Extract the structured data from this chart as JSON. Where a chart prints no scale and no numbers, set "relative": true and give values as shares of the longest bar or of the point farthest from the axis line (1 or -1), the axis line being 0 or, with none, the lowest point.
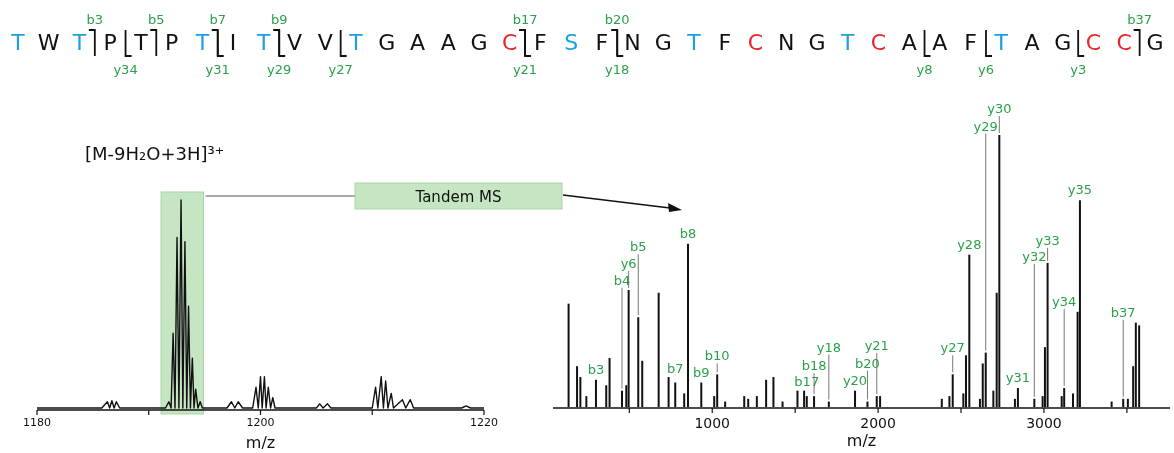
{
  "chart_data": [
    {
      "type": "other",
      "categories": [
        "T",
        "W",
        "T",
        "P",
        "T",
        "P",
        "T",
        "I",
        "T",
        "V",
        "V",
        "T",
        "G",
        "A",
        "A",
        "G",
        "C",
        "F",
        "S",
        "F",
        "N",
        "G",
        "T",
        "F",
        "C",
        "N",
        "G",
        "T",
        "C",
        "A",
        "A",
        "F",
        "T",
        "A",
        "G",
        "C",
        "C",
        "G"
      ],
      "colors": [
        "#1ba1e2",
        "#111111",
        "#1ba1e2",
        "#111111",
        "#111111",
        "#111111",
        "#1ba1e2",
        "#111111",
        "#1ba1e2",
        "#111111",
        "#111111",
        "#1ba1e2",
        "#111111",
        "#111111",
        "#111111",
        "#111111",
        "#e8262a",
        "#111111",
        "#1ba1e2",
        "#111111",
        "#111111",
        "#111111",
        "#1ba1e2",
        "#111111",
        "#e8262a",
        "#111111",
        "#111111",
        "#1ba1e2",
        "#e8262a",
        "#111111",
        "#111111",
        "#111111",
        "#1ba1e2",
        "#111111",
        "#111111",
        "#e8262a",
        "#e8262a",
        "#111111"
      ],
      "series": [
        {
          "color": "#2aa14a",
          "values": [
            null,
            null,
            3,
            null,
            5,
            null,
            7,
            null,
            9,
            null,
            null,
            null,
            null,
            null,
            null,
            null,
            17,
            null,
            null,
            20,
            null,
            null,
            null,
            null,
            null,
            null,
            null,
            null,
            null,
            null,
            null,
            null,
            null,
            null,
            null,
            null,
            37,
            null
          ],
          "value_labels": [
            null,
            null,
            "b3",
            null,
            "b5",
            null,
            "b7",
            null,
            "b9",
            null,
            null,
            null,
            null,
            null,
            null,
            null,
            "b17",
            null,
            null,
            "b20",
            null,
            null,
            null,
            null,
            null,
            null,
            null,
            null,
            null,
            null,
            null,
            null,
            null,
            null,
            null,
            null,
            "b37",
            null
          ]
        },
        {
          "color": "#2aa14a",
          "values": [
            null,
            null,
            null,
            null,
            34,
            null,
            null,
            31,
            null,
            29,
            null,
            27,
            null,
            null,
            null,
            null,
            null,
            21,
            null,
            null,
            18,
            null,
            null,
            null,
            null,
            null,
            null,
            null,
            null,
            null,
            8,
            null,
            6,
            null,
            null,
            3,
            null,
            null
          ],
          "value_labels": [
            null,
            null,
            null,
            null,
            "y34",
            null,
            null,
            "y31",
            null,
            "y29",
            null,
            "y27",
            null,
            null,
            null,
            null,
            null,
            "y21",
            null,
            null,
            "y18",
            null,
            null,
            null,
            null,
            null,
            null,
            null,
            null,
            null,
            "y8",
            null,
            "y6",
            null,
            null,
            "y3",
            null,
            null
          ]
        }
      ]
    },
    {
      "type": "line",
      "relative": true,
      "title": "[M-9H₂O+3H]³⁺",
      "xlabel": "m/z",
      "xlim": [
        1180,
        1220
      ],
      "xticks": [
        1180,
        {
          "value": 1190,
          "label": null
        },
        1200,
        {
          "value": 1210,
          "label": null
        },
        1220
      ],
      "series": [
        {
          "color": "#111111",
          "x": [
            1180,
            1185.8,
            1186.3,
            1186.5,
            1186.7,
            1186.9,
            1187.1,
            1187.4,
            1191.5,
            1191.8,
            1192.0,
            1192.18,
            1192.35,
            1192.53,
            1192.7,
            1192.89,
            1193.05,
            1193.24,
            1193.4,
            1193.56,
            1193.73,
            1193.9,
            1194.05,
            1194.2,
            1194.4,
            1194.6,
            1194.8,
            1197.0,
            1197.4,
            1197.7,
            1198.0,
            1198.4,
            1199.3,
            1199.6,
            1199.8,
            1200.0,
            1200.15,
            1200.35,
            1200.5,
            1200.7,
            1200.9,
            1201.1,
            1201.3,
            1205,
            1205.3,
            1205.6,
            1206,
            1206.3,
            1210,
            1210.3,
            1210.5,
            1210.8,
            1211,
            1211.2,
            1211.4,
            1211.7,
            1211.9,
            1212.7,
            1213,
            1213.4,
            1213.7,
            1218,
            1218.4,
            1218.8,
            1220
          ],
          "values": [
            0,
            0,
            0.03,
            0,
            0.035,
            0,
            0.03,
            0,
            0,
            0.03,
            0,
            0.36,
            0,
            0.82,
            0,
            1,
            0,
            0.8,
            0,
            0.49,
            0,
            0.24,
            0,
            0.09,
            0,
            0.03,
            0,
            0,
            0.03,
            0,
            0.03,
            0,
            0,
            0.1,
            0,
            0.15,
            0,
            0.15,
            0,
            0.1,
            0,
            0.05,
            0,
            0,
            0.02,
            0,
            0.02,
            0,
            0,
            0.1,
            0,
            0.15,
            0,
            0.13,
            0,
            0.07,
            0,
            0.04,
            0,
            0.04,
            0,
            0,
            0.01,
            0,
            0
          ]
        }
      ],
      "bands": [
        {
          "axis": "x",
          "from": 1191.1,
          "to": 1194.9,
          "color": "#c5e5c3"
        }
      ],
      "annotations": [
        "Tandem MS"
      ]
    },
    {
      "type": "bar",
      "relative": true,
      "xlabel": "m/z",
      "xlim": [
        40,
        3760
      ],
      "xticks": [
        {
          "value": 500,
          "label": null
        },
        1000,
        {
          "value": 1500,
          "label": null
        },
        2000,
        {
          "value": 2500,
          "label": null
        },
        3000,
        {
          "value": 3500,
          "label": null
        }
      ],
      "x": [
        134,
        185,
        205,
        241,
        299,
        361,
        381,
        456,
        482,
        496,
        554,
        578,
        677,
        737,
        777,
        831,
        854,
        934,
        1012,
        1030,
        1078,
        1193,
        1217,
        1269,
        1325,
        1369,
        1424,
        1514,
        1554,
        1570,
        1614,
        1703,
        1861,
        1936,
        1992,
        2012,
        2384,
        2430,
        2450,
        2514,
        2530,
        2550,
        2614,
        2631,
        2649,
        2695,
        2715,
        2731,
        2825,
        2843,
        2942,
        2992,
        3006,
        3022,
        3107,
        3122,
        3175,
        3203,
        3217,
        3408,
        3478,
        3506,
        3538,
        3554,
        3574
      ],
      "values": [
        0.38,
        0.15,
        0.11,
        0.04,
        0.1,
        0.08,
        0.18,
        0.06,
        0.08,
        0.43,
        0.33,
        0.17,
        0.42,
        0.11,
        0.09,
        0.05,
        0.6,
        0.09,
        0.04,
        0.12,
        0.02,
        0.04,
        0.03,
        0.04,
        0.1,
        0.11,
        0.02,
        0.06,
        0.06,
        0.04,
        0.04,
        0.02,
        0.06,
        0.02,
        0.04,
        0.04,
        0.03,
        0.04,
        0.12,
        0.05,
        0.19,
        0.56,
        0.03,
        0.16,
        0.2,
        0.06,
        0.42,
        1,
        0.03,
        0.07,
        0.03,
        0.04,
        0.22,
        0.53,
        0.04,
        0.07,
        0.05,
        0.35,
        0.76,
        0.02,
        0.03,
        0.03,
        0.15,
        0.31,
        0.3
      ],
      "color": "#111111",
      "annotations": [
        {
          "text": "b3",
          "x": 299,
          "y": 0.1
        },
        {
          "text": "b4",
          "x": 456,
          "y": 0.06
        },
        {
          "text": "y6",
          "x": 496,
          "y": 0.43
        },
        {
          "text": "b5",
          "x": 554,
          "y": 0.33
        },
        {
          "text": "b7",
          "x": 777,
          "y": 0.09
        },
        {
          "text": "b8",
          "x": 854,
          "y": 0.6
        },
        {
          "text": "b9",
          "x": 934,
          "y": 0.09
        },
        {
          "text": "b10",
          "x": 1030,
          "y": 0.12
        },
        {
          "text": "b17",
          "x": 1570,
          "y": 0.04
        },
        {
          "text": "b18",
          "x": 1614,
          "y": 0.04
        },
        {
          "text": "y18",
          "x": 1703,
          "y": 0.02
        },
        {
          "text": "y20",
          "x": 1861,
          "y": 0.06
        },
        {
          "text": "b20",
          "x": 1936,
          "y": 0.02
        },
        {
          "text": "y21",
          "x": 1992,
          "y": 0.04
        },
        {
          "text": "y27",
          "x": 2450,
          "y": 0.12
        },
        {
          "text": "y28",
          "x": 2550,
          "y": 0.56
        },
        {
          "text": "y29",
          "x": 2649,
          "y": 0.2
        },
        {
          "text": "y30",
          "x": 2731,
          "y": 1
        },
        {
          "text": "y31",
          "x": 2843,
          "y": 0.07
        },
        {
          "text": "y32",
          "x": 2942,
          "y": 0.03
        },
        {
          "text": "y33",
          "x": 3022,
          "y": 0.53
        },
        {
          "text": "y34",
          "x": 3122,
          "y": 0.07
        },
        {
          "text": "y35",
          "x": 3217,
          "y": 0.76
        },
        {
          "text": "b37",
          "x": 3478,
          "y": 0.03
        }
      ]
    }
  ]
}
